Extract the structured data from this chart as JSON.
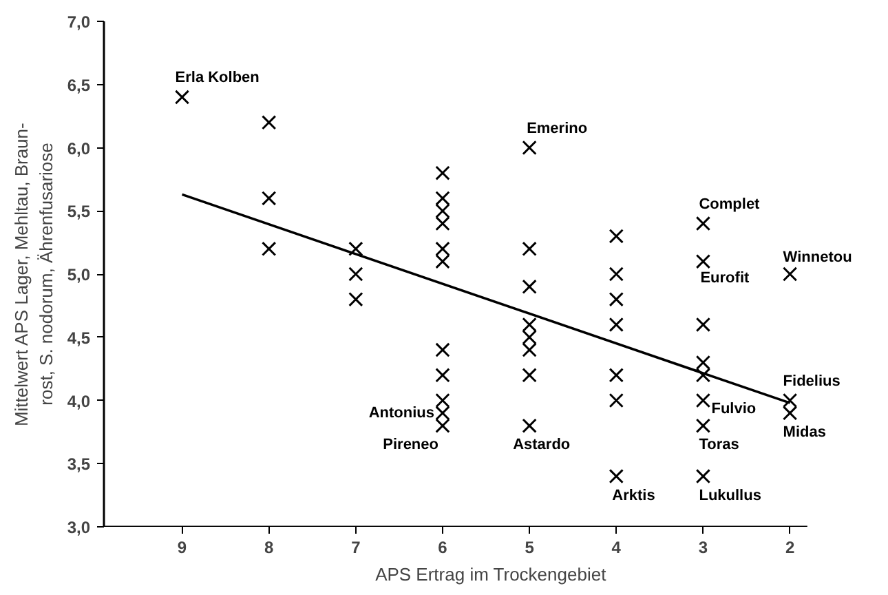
{
  "chart_data": {
    "type": "scatter",
    "xlabel": "APS Ertrag im Trockengebiet",
    "ylabel": "Mittelwert APS Lager, Mehltau, Braun-\nrost, S. nodorum, Ährenfusariose",
    "xlim": [
      9.9,
      1.8
    ],
    "xticks": [
      9,
      8,
      7,
      6,
      5,
      4,
      3,
      2
    ],
    "ylim": [
      3.0,
      7.0
    ],
    "yticks": [
      {
        "value": 3.0,
        "label": "3,0"
      },
      {
        "value": 3.5,
        "label": "3,5"
      },
      {
        "value": 4.0,
        "label": "4,0"
      },
      {
        "value": 4.5,
        "label": "4,5"
      },
      {
        "value": 5.0,
        "label": "5,0"
      },
      {
        "value": 5.5,
        "label": "5,5"
      },
      {
        "value": 6.0,
        "label": "6,0"
      },
      {
        "value": 6.5,
        "label": "6,5"
      },
      {
        "value": 7.0,
        "label": "7,0"
      }
    ],
    "grid": false,
    "series": [
      {
        "color": "#000000",
        "marker": "cross",
        "x": [
          9,
          8,
          8,
          8,
          7,
          7,
          7,
          6,
          6,
          6,
          6,
          6,
          6,
          6,
          6,
          6,
          6,
          6,
          5,
          5,
          5,
          5,
          5,
          5,
          5,
          5,
          4,
          4,
          4,
          4,
          4,
          4,
          4,
          3,
          3,
          3,
          3,
          3,
          3,
          3,
          3,
          2,
          2,
          2
        ],
        "values": [
          6.4,
          6.2,
          5.6,
          5.2,
          5.2,
          5.0,
          4.8,
          5.8,
          5.6,
          5.5,
          5.4,
          5.2,
          5.1,
          4.4,
          4.2,
          4.0,
          3.9,
          3.8,
          6.0,
          5.2,
          4.9,
          4.6,
          4.5,
          4.4,
          4.2,
          3.8,
          5.3,
          5.0,
          4.8,
          4.6,
          4.2,
          4.0,
          3.4,
          5.4,
          5.1,
          4.6,
          4.3,
          4.2,
          4.0,
          3.8,
          3.4,
          5.0,
          4.0,
          3.9
        ]
      },
      {
        "type": "line",
        "marker": "none",
        "color": "#000000",
        "x": [
          9,
          2
        ],
        "values": [
          5.63,
          3.98
        ]
      }
    ],
    "annotations": [
      {
        "text": "Erla Kolben",
        "x": 9,
        "y": 6.4
      },
      {
        "text": "Emerino",
        "x": 5,
        "y": 6.0
      },
      {
        "text": "Complet",
        "x": 3,
        "y": 5.4
      },
      {
        "text": "Winnetou",
        "x": 2,
        "y": 5.0
      },
      {
        "text": "Eurofit",
        "x": 3,
        "y": 5.1
      },
      {
        "text": "Fidelius",
        "x": 2,
        "y": 4.0
      },
      {
        "text": "Fulvio",
        "x": 3,
        "y": 4.0
      },
      {
        "text": "Midas",
        "x": 2,
        "y": 3.9
      },
      {
        "text": "Toras",
        "x": 3,
        "y": 3.8
      },
      {
        "text": "Lukullus",
        "x": 3,
        "y": 3.4
      },
      {
        "text": "Arktis",
        "x": 4,
        "y": 3.4
      },
      {
        "text": "Astardo",
        "x": 5,
        "y": 3.8
      },
      {
        "text": "Antonius",
        "x": 6,
        "y": 3.9
      },
      {
        "text": "Pireneo",
        "x": 6,
        "y": 3.8
      }
    ]
  }
}
